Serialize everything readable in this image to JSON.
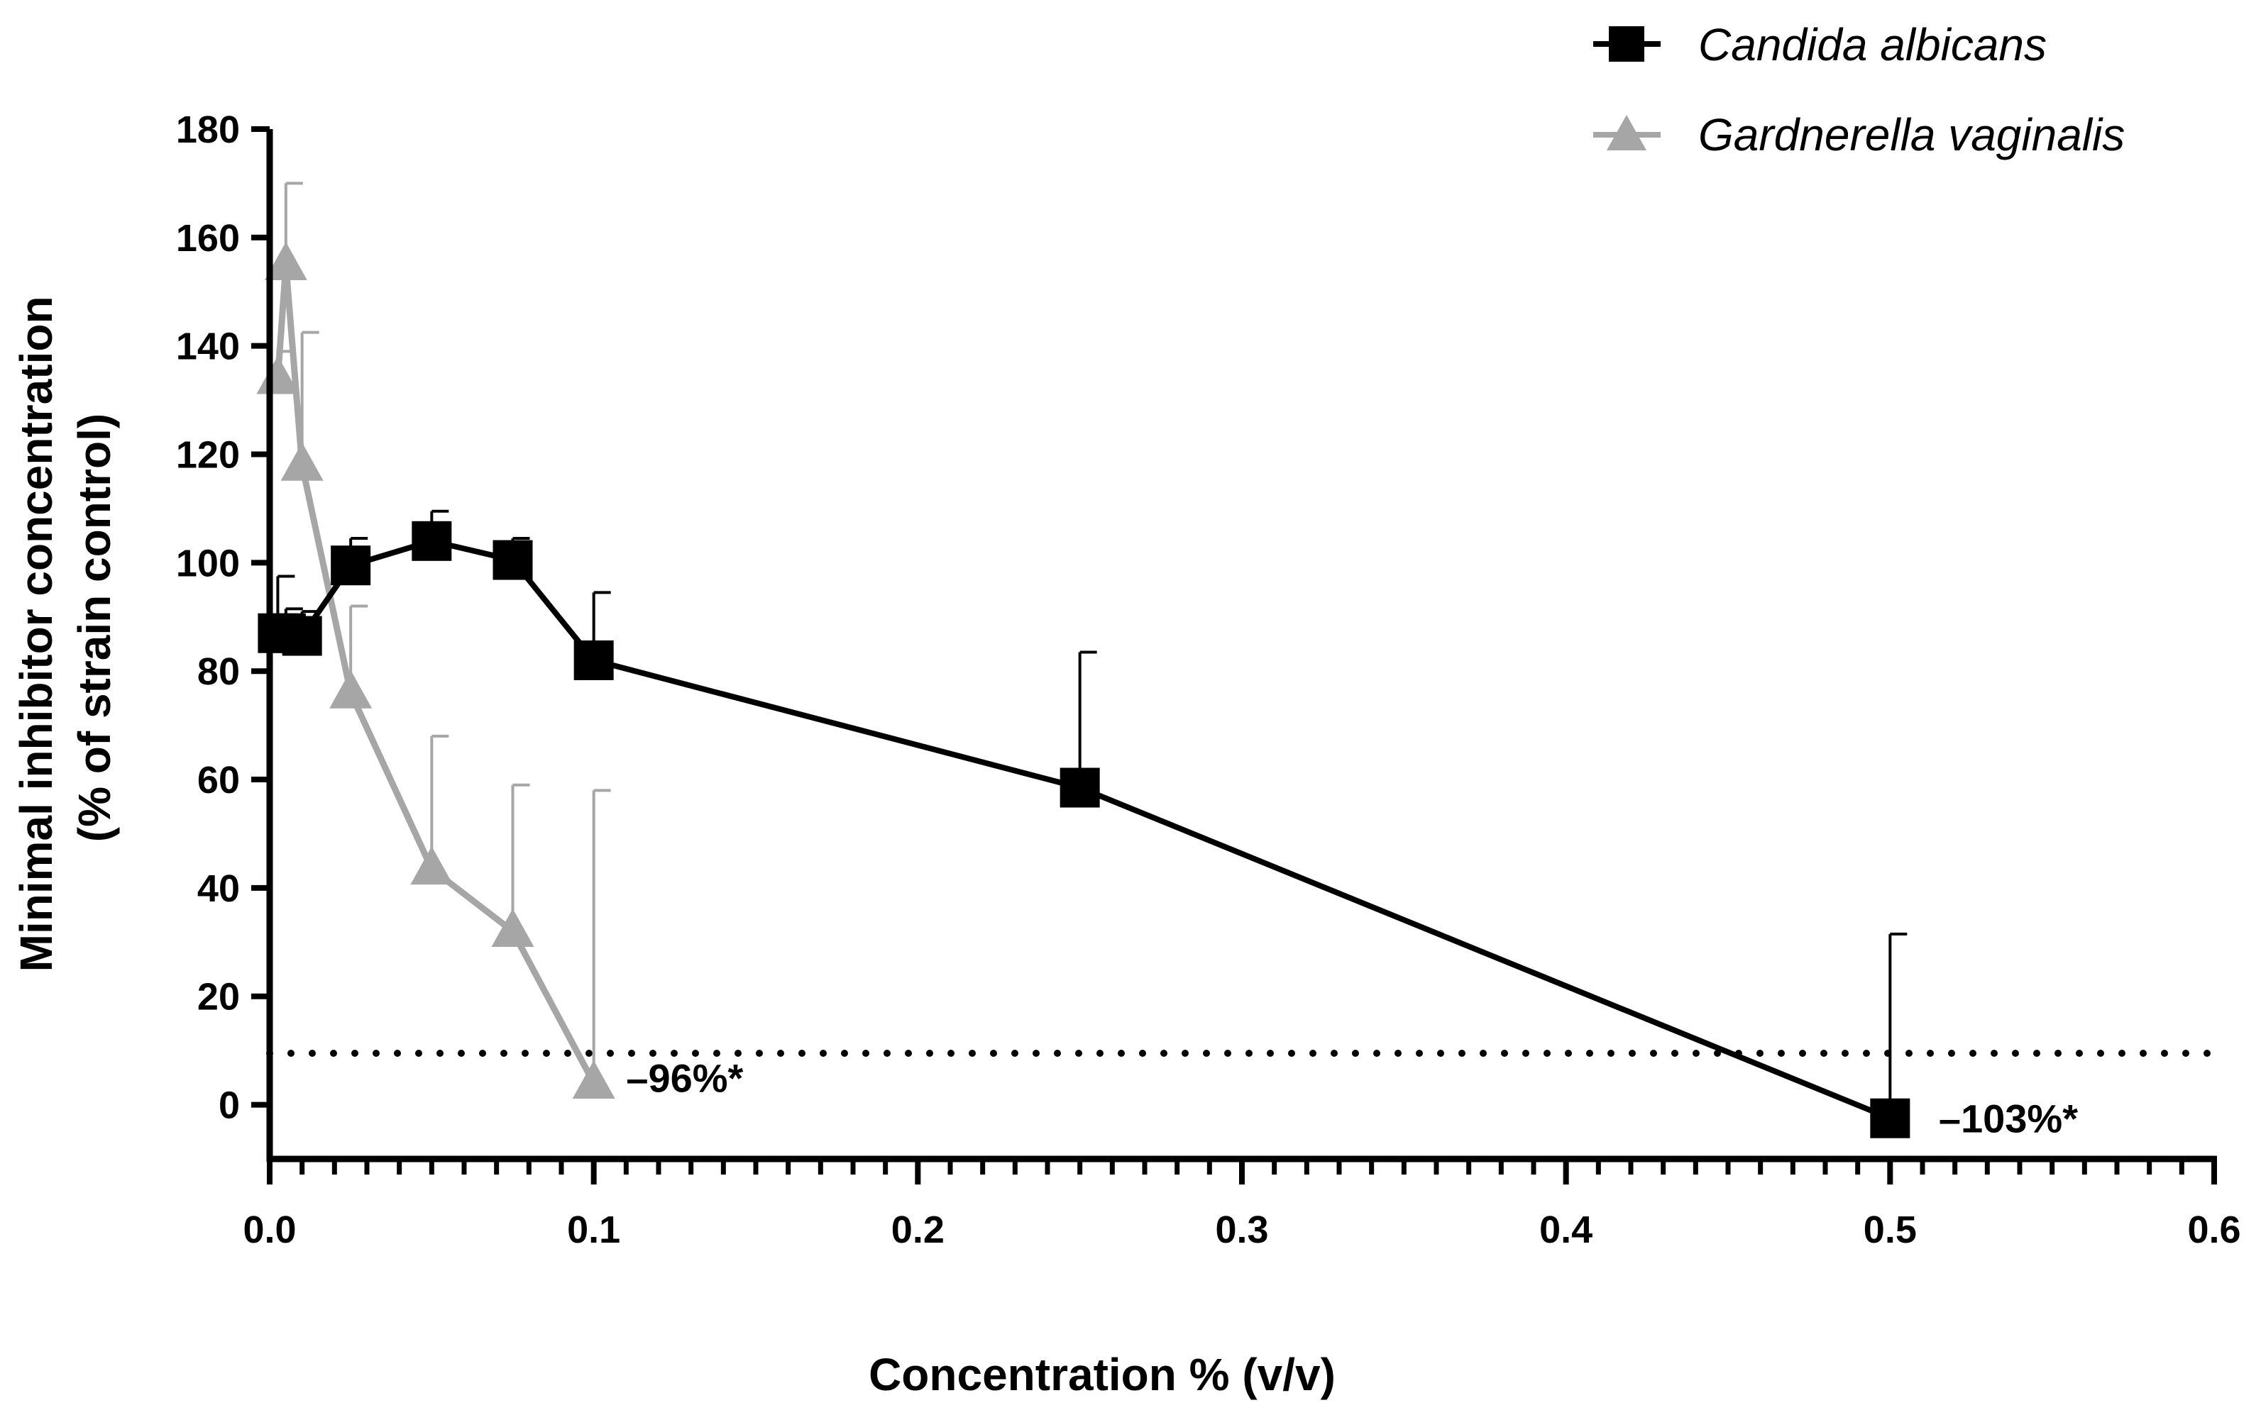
{
  "chart_data": {
    "type": "line",
    "xlabel": "Concentration % (v/v)",
    "ylabel_lines": [
      "Minimal inhibitor concentration",
      "(% of strain control)"
    ],
    "xlim": [
      0,
      0.6
    ],
    "ylim": [
      -10,
      180
    ],
    "x_ticks": [
      "0.0",
      "0.1",
      "0.2",
      "0.3",
      "0.4",
      "0.5",
      "0.6"
    ],
    "y_ticks": [
      "0",
      "20",
      "40",
      "60",
      "80",
      "100",
      "120",
      "140",
      "160",
      "180"
    ],
    "x_tick_values": [
      0,
      0.1,
      0.2,
      0.3,
      0.4,
      0.5,
      0.6
    ],
    "y_tick_values": [
      0,
      20,
      40,
      60,
      80,
      100,
      120,
      140,
      160,
      180
    ],
    "x_minor_step": 0.01,
    "reference_line": {
      "y": 9.5,
      "style": "dotted"
    },
    "legend_position": "top-right",
    "series": [
      {
        "name": "Candida albicans",
        "marker": "square",
        "color": "#000000",
        "x": [
          0.0025,
          0.005,
          0.01,
          0.025,
          0.05,
          0.075,
          0.1,
          0.25,
          0.5
        ],
        "y": [
          87,
          87,
          86.5,
          99.5,
          104,
          100.5,
          82,
          58.5,
          -2.5
        ],
        "err_upper": [
          97.5,
          91.5,
          91,
          104.5,
          109.5,
          104.5,
          94.5,
          83.5,
          31.5
        ]
      },
      {
        "name": "Gardnerella vaginalis",
        "marker": "triangle",
        "color": "#a6a6a6",
        "x": [
          0.0025,
          0.005,
          0.01,
          0.025,
          0.05,
          0.075,
          0.1
        ],
        "y": [
          134,
          155,
          118,
          76,
          43.5,
          32,
          4
        ],
        "err_upper": [
          139,
          170,
          142.5,
          92,
          68,
          59,
          58
        ]
      }
    ],
    "annotations": [
      {
        "text": "–96%*",
        "x": 0.11,
        "y": 5
      },
      {
        "text": "–103%*",
        "x": 0.515,
        "y": -2.5
      }
    ]
  }
}
